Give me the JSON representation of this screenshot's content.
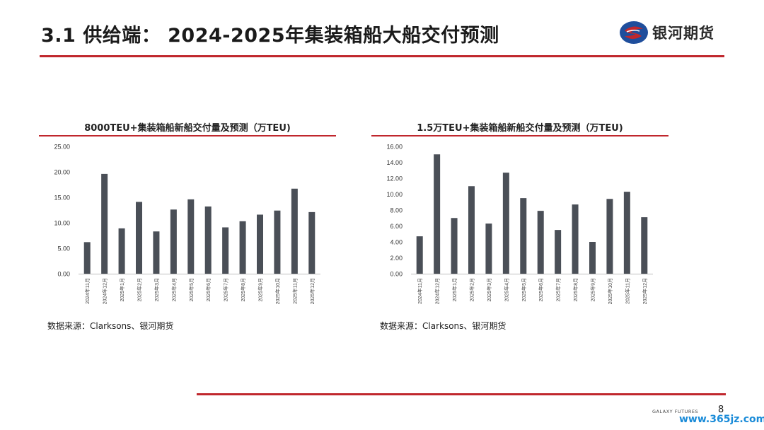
{
  "slide": {
    "title": "3.1 供给端： 2024-2025年集装箱船大船交付预测",
    "brand": "银河期货",
    "footer_brand": "GALAXY FUTURES",
    "page_number": "8",
    "watermark": "www.365jz.com",
    "colors": {
      "accent": "#c0272d",
      "bar": "#4a4f57",
      "logo_blue": "#1f4e9c"
    }
  },
  "chart_data": [
    {
      "type": "bar",
      "title": "8000TEU+集装箱船新船交付量及预测（万TEU)",
      "source": "数据来源：Clarksons、银河期货",
      "categories": [
        "2024年11月",
        "2024年12月",
        "2025年1月",
        "2025年2月",
        "2025年3月",
        "2025年4月",
        "2025年5月",
        "2025年6月",
        "2025年7月",
        "2025年8月",
        "2025年9月",
        "2025年10月",
        "2025年11月",
        "2025年12月"
      ],
      "values": [
        6.2,
        19.6,
        8.9,
        14.1,
        8.3,
        12.6,
        14.6,
        13.2,
        9.1,
        10.3,
        11.6,
        12.4,
        16.7,
        12.1
      ],
      "yticks": [
        "0.00",
        "5.00",
        "10.00",
        "15.00",
        "20.00",
        "25.00"
      ],
      "ylim": [
        0,
        25
      ],
      "grid": false
    },
    {
      "type": "bar",
      "title": "1.5万TEU+集装箱船新船交付量及预测（万TEU)",
      "source": "数据来源：Clarksons、银河期货",
      "categories": [
        "2024年11月",
        "2024年12月",
        "2025年1月",
        "2025年2月",
        "2025年3月",
        "2025年4月",
        "2025年5月",
        "2025年6月",
        "2025年7月",
        "2025年8月",
        "2025年9月",
        "2025年10月",
        "2025年11月",
        "2025年12月"
      ],
      "values": [
        4.7,
        15.0,
        7.0,
        11.0,
        6.3,
        12.7,
        9.5,
        7.9,
        5.5,
        8.7,
        4.0,
        9.4,
        10.3,
        7.1
      ],
      "yticks": [
        "0.00",
        "2.00",
        "4.00",
        "6.00",
        "8.00",
        "10.00",
        "12.00",
        "14.00",
        "16.00"
      ],
      "ylim": [
        0,
        16
      ],
      "grid": false
    }
  ]
}
